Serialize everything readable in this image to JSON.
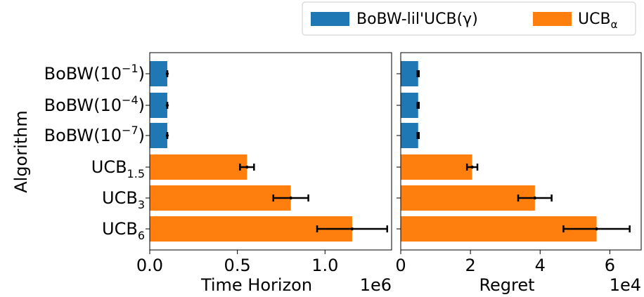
{
  "chart_data": {
    "type": "bar",
    "orientation": "horizontal",
    "ylabel": "Algorithm",
    "categories": [
      {
        "base": "BoBW(10",
        "sup": "−1",
        "sub": "",
        "tail": ")",
        "color": "#1f77b4"
      },
      {
        "base": "BoBW(10",
        "sup": "−4",
        "sub": "",
        "tail": ")",
        "color": "#1f77b4"
      },
      {
        "base": "BoBW(10",
        "sup": "−7",
        "sub": "",
        "tail": ")",
        "color": "#1f77b4"
      },
      {
        "base": "UCB",
        "sup": "",
        "sub": "1.5",
        "tail": "",
        "color": "#ff7f0e"
      },
      {
        "base": "UCB",
        "sup": "",
        "sub": "3",
        "tail": "",
        "color": "#ff7f0e"
      },
      {
        "base": "UCB",
        "sup": "",
        "sub": "6",
        "tail": "",
        "color": "#ff7f0e"
      }
    ],
    "legend": {
      "placement": "top-right",
      "entries": [
        {
          "label": "BoBW-lil'UCB(γ)",
          "color": "#1f77b4"
        },
        {
          "label": "UCB",
          "sub": "α",
          "color": "#ff7f0e"
        }
      ]
    },
    "panels": [
      {
        "xlabel": "Time Horizon",
        "offset_text": "1e6",
        "xlim": [
          0,
          1.38
        ],
        "xticks": [
          0.0,
          0.5,
          1.0
        ],
        "xtick_labels": [
          "0.0",
          "0.5",
          "1.0"
        ],
        "values": [
          0.1,
          0.1,
          0.1,
          0.555,
          0.805,
          1.155
        ],
        "errors": [
          0,
          0,
          0,
          0.04,
          0.1,
          0.2
        ]
      },
      {
        "xlabel": "Regret",
        "offset_text": "1e4",
        "xlim": [
          0,
          6.9
        ],
        "xticks": [
          0,
          2,
          4,
          6
        ],
        "xtick_labels": [
          "0",
          "2",
          "4",
          "6"
        ],
        "values": [
          0.5,
          0.5,
          0.5,
          2.05,
          3.85,
          5.62
        ],
        "errors": [
          0.02,
          0.02,
          0.02,
          0.15,
          0.48,
          0.95
        ]
      }
    ]
  }
}
